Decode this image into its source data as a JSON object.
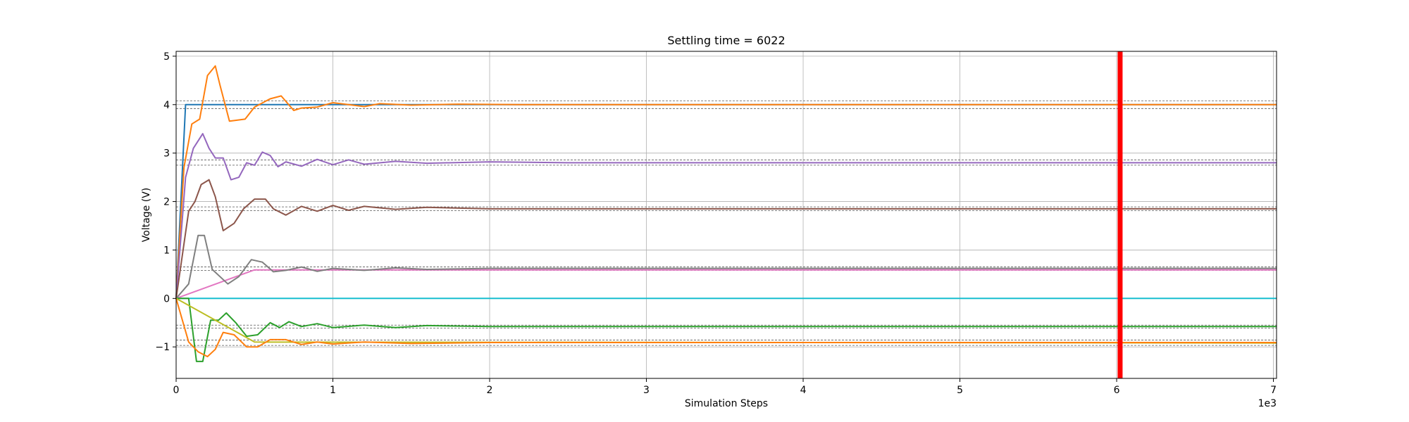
{
  "chart_data": {
    "type": "line",
    "title": "Settling time = 6022",
    "xlabel": "Simulation Steps",
    "ylabel": "Voltage (V)",
    "x_offset_text": "1e3",
    "xlim": [
      0,
      7.02
    ],
    "ylim": [
      -1.65,
      5.1
    ],
    "x_ticks": [
      0,
      1,
      2,
      3,
      4,
      5,
      6,
      7
    ],
    "x_tick_labels": [
      "0",
      "1",
      "2",
      "3",
      "4",
      "5",
      "6",
      "7"
    ],
    "y_ticks": [
      -1,
      0,
      1,
      2,
      3,
      4,
      5
    ],
    "y_tick_labels": [
      "−1",
      "0",
      "1",
      "2",
      "3",
      "4",
      "5"
    ],
    "grid": true,
    "settling_marker": {
      "x": 6.022,
      "color": "#ff0000"
    },
    "tolerance_bands": [
      [
        4.08,
        3.92
      ],
      [
        2.86,
        2.75
      ],
      [
        1.89,
        1.81
      ],
      [
        0.65,
        0.58
      ],
      [
        -0.55,
        -0.61
      ],
      [
        -0.86,
        -0.97
      ]
    ],
    "series": [
      {
        "color": "#1f77b4",
        "points": [
          [
            0,
            0
          ],
          [
            0.06,
            4.0
          ],
          [
            7.02,
            4.0
          ]
        ]
      },
      {
        "color": "#ff7f0e",
        "points": [
          [
            0,
            0
          ],
          [
            0.05,
            2.7
          ],
          [
            0.1,
            3.6
          ],
          [
            0.15,
            3.7
          ],
          [
            0.2,
            4.6
          ],
          [
            0.25,
            4.8
          ],
          [
            0.28,
            4.4
          ],
          [
            0.34,
            3.66
          ],
          [
            0.44,
            3.7
          ],
          [
            0.5,
            3.95
          ],
          [
            0.6,
            4.12
          ],
          [
            0.67,
            4.18
          ],
          [
            0.75,
            3.88
          ],
          [
            0.8,
            3.93
          ],
          [
            0.9,
            3.95
          ],
          [
            1.0,
            4.04
          ],
          [
            1.1,
            4.0
          ],
          [
            1.2,
            3.96
          ],
          [
            1.3,
            4.02
          ],
          [
            1.5,
            3.99
          ],
          [
            1.8,
            4.01
          ],
          [
            2.2,
            4.0
          ],
          [
            7.02,
            4.0
          ]
        ]
      },
      {
        "color": "#9467bd",
        "points": [
          [
            0,
            0
          ],
          [
            0.06,
            2.5
          ],
          [
            0.11,
            3.1
          ],
          [
            0.17,
            3.4
          ],
          [
            0.21,
            3.1
          ],
          [
            0.25,
            2.9
          ],
          [
            0.3,
            2.9
          ],
          [
            0.35,
            2.45
          ],
          [
            0.4,
            2.5
          ],
          [
            0.45,
            2.8
          ],
          [
            0.5,
            2.75
          ],
          [
            0.55,
            3.02
          ],
          [
            0.6,
            2.95
          ],
          [
            0.65,
            2.72
          ],
          [
            0.7,
            2.82
          ],
          [
            0.8,
            2.73
          ],
          [
            0.9,
            2.87
          ],
          [
            1.0,
            2.76
          ],
          [
            1.1,
            2.86
          ],
          [
            1.2,
            2.77
          ],
          [
            1.4,
            2.83
          ],
          [
            1.6,
            2.79
          ],
          [
            2.0,
            2.82
          ],
          [
            2.5,
            2.8
          ],
          [
            7.02,
            2.8
          ]
        ]
      },
      {
        "color": "#8c564b",
        "points": [
          [
            0,
            0
          ],
          [
            0.08,
            1.8
          ],
          [
            0.12,
            2.0
          ],
          [
            0.16,
            2.35
          ],
          [
            0.21,
            2.45
          ],
          [
            0.25,
            2.1
          ],
          [
            0.3,
            1.4
          ],
          [
            0.37,
            1.55
          ],
          [
            0.43,
            1.85
          ],
          [
            0.5,
            2.05
          ],
          [
            0.57,
            2.05
          ],
          [
            0.62,
            1.85
          ],
          [
            0.7,
            1.72
          ],
          [
            0.8,
            1.9
          ],
          [
            0.9,
            1.8
          ],
          [
            1.0,
            1.92
          ],
          [
            1.1,
            1.82
          ],
          [
            1.2,
            1.9
          ],
          [
            1.4,
            1.84
          ],
          [
            1.6,
            1.88
          ],
          [
            2.0,
            1.85
          ],
          [
            7.02,
            1.85
          ]
        ]
      },
      {
        "color": "#e377c2",
        "points": [
          [
            0,
            0
          ],
          [
            0.5,
            0.59
          ],
          [
            7.02,
            0.59
          ]
        ]
      },
      {
        "color": "#7f7f7f",
        "points": [
          [
            0,
            0
          ],
          [
            0.08,
            0.3
          ],
          [
            0.14,
            1.3
          ],
          [
            0.18,
            1.3
          ],
          [
            0.23,
            0.6
          ],
          [
            0.28,
            0.45
          ],
          [
            0.33,
            0.3
          ],
          [
            0.4,
            0.45
          ],
          [
            0.48,
            0.8
          ],
          [
            0.55,
            0.75
          ],
          [
            0.62,
            0.55
          ],
          [
            0.7,
            0.58
          ],
          [
            0.8,
            0.65
          ],
          [
            0.9,
            0.56
          ],
          [
            1.0,
            0.62
          ],
          [
            1.2,
            0.58
          ],
          [
            1.4,
            0.63
          ],
          [
            1.6,
            0.6
          ],
          [
            2.0,
            0.62
          ],
          [
            7.02,
            0.62
          ]
        ]
      },
      {
        "color": "#17becf",
        "points": [
          [
            0,
            0
          ],
          [
            7.02,
            0
          ]
        ]
      },
      {
        "color": "#2ca02c",
        "points": [
          [
            0,
            0
          ],
          [
            0.08,
            0
          ],
          [
            0.13,
            -1.3
          ],
          [
            0.17,
            -1.3
          ],
          [
            0.22,
            -0.45
          ],
          [
            0.27,
            -0.45
          ],
          [
            0.32,
            -0.3
          ],
          [
            0.38,
            -0.5
          ],
          [
            0.45,
            -0.78
          ],
          [
            0.52,
            -0.75
          ],
          [
            0.6,
            -0.5
          ],
          [
            0.66,
            -0.6
          ],
          [
            0.72,
            -0.48
          ],
          [
            0.8,
            -0.58
          ],
          [
            0.9,
            -0.52
          ],
          [
            1.0,
            -0.6
          ],
          [
            1.2,
            -0.55
          ],
          [
            1.4,
            -0.6
          ],
          [
            1.6,
            -0.56
          ],
          [
            2.0,
            -0.58
          ],
          [
            7.02,
            -0.58
          ]
        ]
      },
      {
        "color": "#bcbd22",
        "points": [
          [
            0,
            0
          ],
          [
            0.5,
            -0.9
          ],
          [
            7.02,
            -0.92
          ]
        ]
      },
      {
        "color": "#ff7f0e",
        "points": [
          [
            0,
            0
          ],
          [
            0.08,
            -0.9
          ],
          [
            0.14,
            -1.1
          ],
          [
            0.2,
            -1.2
          ],
          [
            0.25,
            -1.05
          ],
          [
            0.3,
            -0.7
          ],
          [
            0.37,
            -0.75
          ],
          [
            0.45,
            -1.0
          ],
          [
            0.52,
            -1.0
          ],
          [
            0.6,
            -0.85
          ],
          [
            0.7,
            -0.85
          ],
          [
            0.8,
            -0.95
          ],
          [
            0.9,
            -0.9
          ],
          [
            1.0,
            -0.94
          ],
          [
            1.2,
            -0.9
          ],
          [
            1.5,
            -0.93
          ],
          [
            2.0,
            -0.91
          ],
          [
            7.02,
            -0.91
          ]
        ]
      }
    ]
  }
}
